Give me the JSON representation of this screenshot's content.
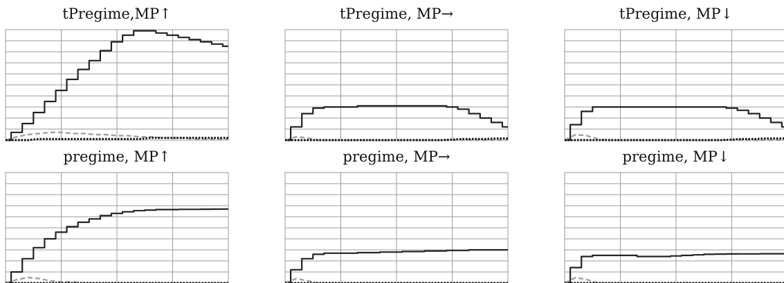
{
  "figure": {
    "panels": [
      {
        "title": "tPregime,MP↑"
      },
      {
        "title": "tPregime, MP→"
      },
      {
        "title": "tPregime, MP↓"
      },
      {
        "title": "pregime, MP↑"
      },
      {
        "title": "pregime, MP→"
      },
      {
        "title": "pregime, MP↓"
      }
    ]
  },
  "colors": {
    "series_solid": "#222222",
    "series_dashed_gray": "#a0a0a0",
    "series_dotted_black": "#111111",
    "grid": "#9a9a9a"
  },
  "chart_data": [
    {
      "type": "line",
      "title": "tPregime,MP↑",
      "x": [
        0,
        0.05,
        0.1,
        0.15,
        0.2,
        0.25,
        0.3,
        0.35,
        0.4,
        0.45,
        0.5,
        0.55,
        0.6,
        0.65,
        0.7,
        0.75,
        0.8,
        0.85,
        0.9,
        0.95,
        1.0
      ],
      "xlim": [
        0,
        1
      ],
      "ylim": [
        0,
        1
      ],
      "grid": true,
      "x_gridlines": 4,
      "y_gridlines": 10,
      "legend": "none",
      "series": [
        {
          "style": "solid-stepped",
          "color": "#222222",
          "values": [
            0.0,
            0.07,
            0.15,
            0.25,
            0.35,
            0.45,
            0.55,
            0.64,
            0.72,
            0.81,
            0.89,
            0.95,
            0.99,
            0.99,
            0.97,
            0.95,
            0.93,
            0.91,
            0.89,
            0.87,
            0.85
          ]
        },
        {
          "style": "dashed",
          "color": "#a0a0a0",
          "values": [
            0.0,
            0.03,
            0.05,
            0.06,
            0.07,
            0.07,
            0.06,
            0.06,
            0.05,
            0.05,
            0.04,
            0.04,
            0.03,
            0.03,
            0.02,
            0.02,
            0.02,
            0.01,
            0.01,
            0.01,
            0.01
          ]
        },
        {
          "style": "dotted",
          "color": "#111111",
          "values": [
            0.0,
            0.0,
            0.0,
            0.01,
            0.01,
            0.01,
            0.01,
            0.01,
            0.01,
            0.01,
            0.01,
            0.01,
            0.01,
            0.02,
            0.02,
            0.02,
            0.02,
            0.02,
            0.02,
            0.02,
            0.02
          ]
        }
      ]
    },
    {
      "type": "line",
      "title": "tPregime, MP→",
      "x": [
        0,
        0.05,
        0.1,
        0.15,
        0.2,
        0.25,
        0.3,
        0.35,
        0.4,
        0.45,
        0.5,
        0.55,
        0.6,
        0.65,
        0.7,
        0.75,
        0.8,
        0.85,
        0.9,
        0.95,
        1.0
      ],
      "xlim": [
        0,
        1
      ],
      "ylim": [
        0,
        1
      ],
      "grid": true,
      "x_gridlines": 4,
      "y_gridlines": 10,
      "legend": "none",
      "series": [
        {
          "style": "solid-stepped",
          "color": "#222222",
          "values": [
            0.0,
            0.12,
            0.24,
            0.29,
            0.3,
            0.3,
            0.3,
            0.31,
            0.31,
            0.31,
            0.31,
            0.31,
            0.31,
            0.31,
            0.31,
            0.3,
            0.28,
            0.24,
            0.2,
            0.16,
            0.12
          ]
        },
        {
          "style": "dashed",
          "color": "#a0a0a0",
          "values": [
            0.0,
            0.03,
            0.02,
            0.0,
            0.0,
            0.0,
            0.0,
            0.0,
            0.0,
            0.0,
            0.0,
            0.0,
            0.0,
            0.0,
            0.0,
            0.0,
            0.0,
            0.0,
            0.0,
            0.0,
            0.0
          ]
        },
        {
          "style": "dotted",
          "color": "#111111",
          "values": [
            0.0,
            0.0,
            0.0,
            0.0,
            0.0,
            0.0,
            0.0,
            0.0,
            0.0,
            0.0,
            0.0,
            0.0,
            0.0,
            0.0,
            0.0,
            0.005,
            0.01,
            0.01,
            0.01,
            0.015,
            0.015
          ]
        }
      ]
    },
    {
      "type": "line",
      "title": "tPregime, MP↓",
      "x": [
        0,
        0.05,
        0.1,
        0.15,
        0.2,
        0.25,
        0.3,
        0.35,
        0.4,
        0.45,
        0.5,
        0.55,
        0.6,
        0.65,
        0.7,
        0.75,
        0.8,
        0.85,
        0.9,
        0.95,
        1.0
      ],
      "xlim": [
        0,
        1
      ],
      "ylim": [
        0,
        1
      ],
      "grid": true,
      "x_gridlines": 4,
      "y_gridlines": 10,
      "legend": "none",
      "series": [
        {
          "style": "solid-stepped",
          "color": "#222222",
          "values": [
            0.0,
            0.14,
            0.26,
            0.3,
            0.3,
            0.3,
            0.3,
            0.3,
            0.3,
            0.3,
            0.3,
            0.3,
            0.3,
            0.3,
            0.3,
            0.29,
            0.27,
            0.24,
            0.2,
            0.16,
            0.12
          ]
        },
        {
          "style": "dashed",
          "color": "#a0a0a0",
          "values": [
            0.0,
            0.05,
            0.04,
            0.01,
            0.0,
            0.0,
            0.0,
            0.0,
            0.0,
            0.0,
            0.0,
            0.0,
            0.0,
            0.0,
            0.0,
            0.0,
            0.0,
            0.0,
            0.0,
            0.0,
            0.0
          ]
        },
        {
          "style": "dotted",
          "color": "#111111",
          "values": [
            0.0,
            0.0,
            0.0,
            0.0,
            0.0,
            0.0,
            0.0,
            0.0,
            0.0,
            0.0,
            0.0,
            0.0,
            0.0,
            0.0,
            0.0,
            0.005,
            0.01,
            0.01,
            0.015,
            0.015,
            0.015
          ]
        }
      ]
    },
    {
      "type": "line",
      "title": "pregime, MP↑",
      "x": [
        0,
        0.05,
        0.1,
        0.15,
        0.2,
        0.25,
        0.3,
        0.35,
        0.4,
        0.45,
        0.5,
        0.55,
        0.6,
        0.65,
        0.7,
        0.75,
        0.8,
        0.85,
        0.9,
        0.95,
        1.0
      ],
      "xlim": [
        0,
        1
      ],
      "ylim": [
        0,
        1
      ],
      "grid": true,
      "x_gridlines": 4,
      "y_gridlines": 10,
      "legend": "none",
      "series": [
        {
          "style": "solid-stepped",
          "color": "#222222",
          "values": [
            0.0,
            0.1,
            0.22,
            0.32,
            0.4,
            0.46,
            0.51,
            0.55,
            0.58,
            0.61,
            0.63,
            0.645,
            0.655,
            0.66,
            0.665,
            0.665,
            0.667,
            0.667,
            0.668,
            0.669,
            0.67
          ]
        },
        {
          "style": "dashed",
          "color": "#a0a0a0",
          "values": [
            0.0,
            0.03,
            0.05,
            0.04,
            0.02,
            0.01,
            0.01,
            0.0,
            0.0,
            0.0,
            0.0,
            0.0,
            0.0,
            0.0,
            0.0,
            0.0,
            0.0,
            0.0,
            0.0,
            0.0,
            0.0
          ]
        },
        {
          "style": "dotted",
          "color": "#111111",
          "values": [
            0.0,
            0.0,
            0.0,
            0.0,
            0.0,
            0.0,
            0.0,
            0.0,
            0.0,
            0.0,
            0.0,
            0.0,
            0.0,
            0.0,
            0.0,
            0.0,
            0.0,
            0.0,
            0.0,
            0.0,
            0.0
          ]
        }
      ]
    },
    {
      "type": "line",
      "title": "pregime, MP→",
      "x": [
        0,
        0.05,
        0.1,
        0.15,
        0.2,
        0.25,
        0.3,
        0.35,
        0.4,
        0.45,
        0.5,
        0.55,
        0.6,
        0.65,
        0.7,
        0.75,
        0.8,
        0.85,
        0.9,
        0.95,
        1.0
      ],
      "xlim": [
        0,
        1
      ],
      "ylim": [
        0,
        1
      ],
      "grid": true,
      "x_gridlines": 4,
      "y_gridlines": 10,
      "legend": "none",
      "series": [
        {
          "style": "solid-stepped",
          "color": "#222222",
          "values": [
            0.0,
            0.12,
            0.22,
            0.26,
            0.27,
            0.27,
            0.27,
            0.275,
            0.275,
            0.28,
            0.28,
            0.285,
            0.285,
            0.29,
            0.29,
            0.295,
            0.295,
            0.3,
            0.3,
            0.3,
            0.3
          ]
        },
        {
          "style": "dashed",
          "color": "#a0a0a0",
          "values": [
            0.0,
            0.04,
            0.02,
            0.0,
            0.0,
            0.0,
            0.0,
            0.0,
            0.0,
            0.0,
            0.0,
            0.0,
            0.0,
            0.0,
            0.0,
            0.0,
            0.0,
            0.0,
            0.0,
            0.0,
            0.0
          ]
        },
        {
          "style": "dotted",
          "color": "#111111",
          "values": [
            0.0,
            0.0,
            0.0,
            0.0,
            0.0,
            0.0,
            0.0,
            0.0,
            0.0,
            0.0,
            0.0,
            0.0,
            0.0,
            0.0,
            0.0,
            0.0,
            0.0,
            0.0,
            0.0,
            0.0,
            0.0
          ]
        }
      ]
    },
    {
      "type": "line",
      "title": "pregime, MP↓",
      "x": [
        0,
        0.05,
        0.1,
        0.15,
        0.2,
        0.25,
        0.3,
        0.35,
        0.4,
        0.45,
        0.5,
        0.55,
        0.6,
        0.65,
        0.7,
        0.75,
        0.8,
        0.85,
        0.9,
        0.95,
        1.0
      ],
      "xlim": [
        0,
        1
      ],
      "ylim": [
        0,
        1
      ],
      "grid": true,
      "x_gridlines": 4,
      "y_gridlines": 10,
      "legend": "none",
      "series": [
        {
          "style": "solid-stepped",
          "color": "#222222",
          "values": [
            0.0,
            0.14,
            0.24,
            0.25,
            0.25,
            0.25,
            0.25,
            0.24,
            0.24,
            0.24,
            0.245,
            0.25,
            0.255,
            0.26,
            0.262,
            0.263,
            0.264,
            0.264,
            0.265,
            0.265,
            0.265
          ]
        },
        {
          "style": "dashed",
          "color": "#a0a0a0",
          "values": [
            0.0,
            0.05,
            0.03,
            0.0,
            0.0,
            0.0,
            0.0,
            0.0,
            0.0,
            0.0,
            0.0,
            0.0,
            0.0,
            0.0,
            0.0,
            0.0,
            0.0,
            0.0,
            0.0,
            0.0,
            0.0
          ]
        },
        {
          "style": "dotted",
          "color": "#111111",
          "values": [
            0.0,
            0.0,
            0.0,
            0.0,
            0.0,
            0.0,
            0.0,
            0.0,
            0.0,
            0.0,
            0.0,
            0.0,
            0.0,
            0.0,
            0.0,
            0.0,
            0.0,
            0.0,
            0.0,
            0.0,
            0.0
          ]
        }
      ]
    }
  ]
}
